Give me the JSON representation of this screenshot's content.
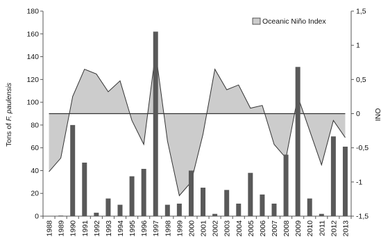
{
  "chart_data": {
    "type": "bar",
    "title": "",
    "categories": [
      "1988",
      "1989",
      "1990",
      "1991",
      "1992",
      "1993",
      "1994",
      "1995",
      "1996",
      "1997",
      "1998",
      "1999",
      "2000",
      "2001",
      "2002",
      "2003",
      "2004",
      "2005",
      "2006",
      "2007",
      "2008",
      "2009",
      "2010",
      "2011",
      "2012",
      "2013"
    ],
    "y_left_label_prefix": "Tons of ",
    "y_left_label_species": "F. paulensis",
    "y_right_label": "ONI",
    "ylim_left": [
      0,
      180
    ],
    "yticks_left": [
      "0",
      "20",
      "40",
      "60",
      "80",
      "100",
      "120",
      "140",
      "160",
      "180"
    ],
    "ylim_right": [
      -1.5,
      1.5
    ],
    "yticks_right": [
      "-1,5",
      "-1",
      "-0,5",
      "0",
      "0,5",
      "1",
      "1,5"
    ],
    "grid": false,
    "legend": {
      "position": "top-right",
      "entries": [
        {
          "label": "Oceanic Niño Index",
          "color": "#cccccc"
        }
      ]
    },
    "series": [
      {
        "type": "bar",
        "axis": "left",
        "color": "#595959",
        "values": [
          0,
          0.5,
          80,
          47,
          3,
          15.5,
          10,
          35,
          41.5,
          162,
          10,
          11,
          40,
          25,
          2,
          23,
          11,
          38,
          19,
          11,
          54,
          131,
          15.5,
          2,
          70,
          61
        ]
      },
      {
        "name": "Oceanic Niño Index",
        "type": "area",
        "axis": "right",
        "color": "#cccccc",
        "line_color": "#333333",
        "values": [
          -0.85,
          -0.65,
          0.25,
          0.65,
          0.58,
          0.32,
          0.48,
          -0.1,
          -0.45,
          0.9,
          -0.4,
          -1.2,
          -1.0,
          -0.3,
          0.65,
          0.35,
          0.42,
          0.08,
          0.12,
          -0.45,
          -0.65,
          0.25,
          -0.25,
          -0.75,
          -0.1,
          -0.35
        ]
      }
    ]
  }
}
